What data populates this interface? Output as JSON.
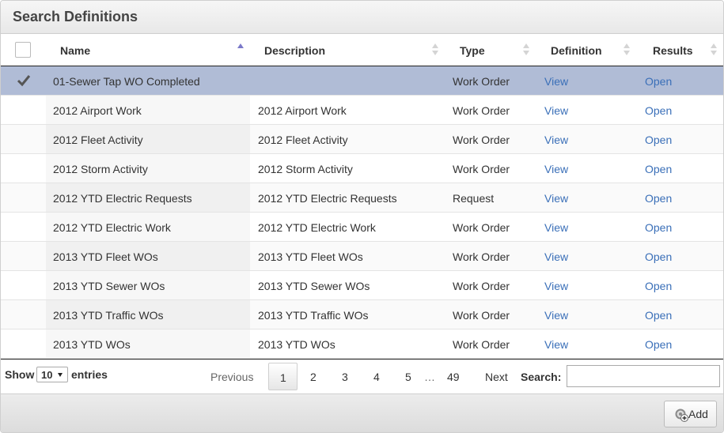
{
  "panel": {
    "title": "Search Definitions"
  },
  "table": {
    "columns": {
      "name": "Name",
      "description": "Description",
      "type": "Type",
      "definition": "Definition",
      "results": "Results"
    },
    "rows": [
      {
        "name": "01-Sewer Tap WO Completed",
        "description": "",
        "type": "Work Order",
        "definition": "View",
        "results": "Open",
        "selected": true
      },
      {
        "name": "2012 Airport Work",
        "description": "2012 Airport Work",
        "type": "Work Order",
        "definition": "View",
        "results": "Open"
      },
      {
        "name": "2012 Fleet Activity",
        "description": "2012 Fleet Activity",
        "type": "Work Order",
        "definition": "View",
        "results": "Open"
      },
      {
        "name": "2012 Storm Activity",
        "description": "2012 Storm Activity",
        "type": "Work Order",
        "definition": "View",
        "results": "Open"
      },
      {
        "name": "2012 YTD Electric Requests",
        "description": "2012 YTD Electric Requests",
        "type": "Request",
        "definition": "View",
        "results": "Open"
      },
      {
        "name": "2012 YTD Electric Work",
        "description": "2012 YTD Electric Work",
        "type": "Work Order",
        "definition": "View",
        "results": "Open"
      },
      {
        "name": "2013 YTD Fleet WOs",
        "description": "2013 YTD Fleet WOs",
        "type": "Work Order",
        "definition": "View",
        "results": "Open"
      },
      {
        "name": "2013 YTD Sewer WOs",
        "description": "2013 YTD Sewer WOs",
        "type": "Work Order",
        "definition": "View",
        "results": "Open"
      },
      {
        "name": "2013 YTD Traffic WOs",
        "description": "2013 YTD Traffic WOs",
        "type": "Work Order",
        "definition": "View",
        "results": "Open"
      },
      {
        "name": "2013 YTD WOs",
        "description": "2013 YTD WOs",
        "type": "Work Order",
        "definition": "View",
        "results": "Open"
      }
    ]
  },
  "footer": {
    "show_label": "Show",
    "length_value": "10",
    "entries_label": "entries",
    "pagination": {
      "previous": "Previous",
      "pages": [
        "1",
        "2",
        "3",
        "4",
        "5"
      ],
      "ellipsis": "…",
      "last": "49",
      "next": "Next",
      "current": "1"
    },
    "search_label": "Search:",
    "search_value": ""
  },
  "actions": {
    "add_label": "Add"
  },
  "icons": {
    "selected_row": "checkmark-icon",
    "add": "add-gear-icon",
    "sort_asc": "sort-ascending-icon",
    "sort_both": "sort-both-icon"
  },
  "colors": {
    "link": "#3a6fb8",
    "selected_row": "#b0bcd6",
    "sort_active": "#7b79c9"
  }
}
